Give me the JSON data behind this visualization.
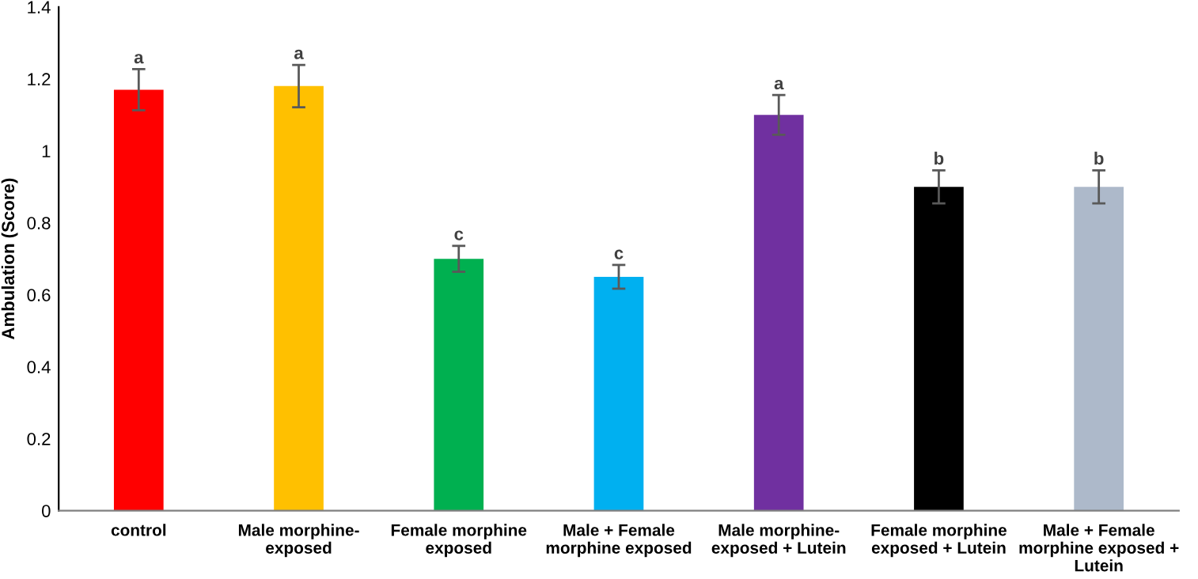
{
  "chart_data": {
    "type": "bar",
    "ylabel": "Ambulation (Score)",
    "categories": [
      "control",
      "Male morphine-\nexposed",
      "Female morphine\nexposed",
      "Male + Female\nmorphine exposed",
      "Male morphine-\nexposed + Lutein",
      "Female morphine\nexposed + Lutein",
      "Male + Female\nmorphine exposed +\nLutein"
    ],
    "values": [
      1.17,
      1.18,
      0.7,
      0.65,
      1.1,
      0.9,
      0.9
    ],
    "errors": [
      0.057,
      0.059,
      0.036,
      0.033,
      0.055,
      0.046,
      0.046
    ],
    "colors": [
      "#ff0000",
      "#ffc000",
      "#00b050",
      "#00b0f0",
      "#7030a0",
      "#000000",
      "#adb9ca"
    ],
    "annotations": [
      "a",
      "a",
      "c",
      "c",
      "a",
      "b",
      "b"
    ],
    "ylim": [
      0,
      1.4
    ],
    "yticks": [
      0,
      0.2,
      0.4,
      0.6,
      0.8,
      1,
      1.2,
      1.4
    ],
    "grid": false,
    "legend": false
  }
}
